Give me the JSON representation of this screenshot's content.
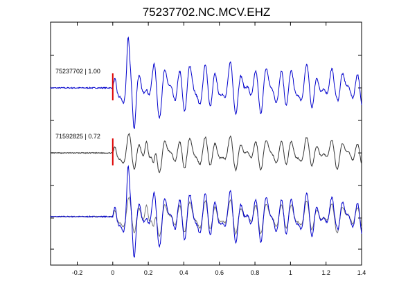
{
  "chart_data": {
    "type": "line",
    "title": "75237702.NC.MCV.EHZ",
    "xlim": [
      -0.35,
      1.4
    ],
    "x_ticks": [
      -0.2,
      0,
      0.2,
      0.4,
      0.6,
      0.8,
      1,
      1.2,
      1.4
    ],
    "x_tick_labels": [
      "-0.2",
      "0",
      "0.2",
      "0.4",
      "0.6",
      "0.8",
      "1",
      "1.2",
      "1.4"
    ],
    "pick_time": 0,
    "colors": {
      "trace_a": "#0000cc",
      "trace_b": "#333333",
      "trace_b_overlay": "#777777",
      "pick": "#dd0000"
    },
    "series": [
      {
        "name": "75237702 | 1.00"
      },
      {
        "name": "71592825 | 0.72"
      }
    ]
  }
}
